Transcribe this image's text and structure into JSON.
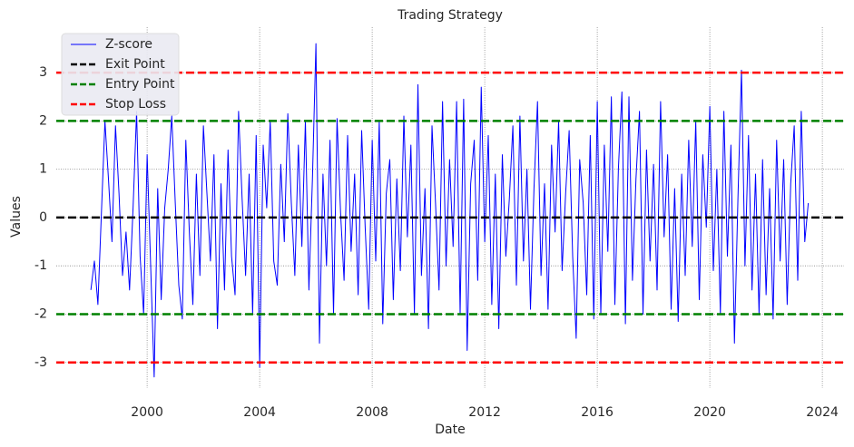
{
  "chart_data": {
    "type": "line",
    "title": "Trading Strategy",
    "x_label": "Date",
    "y_label": "Values",
    "x": [
      1998,
      1998.125,
      1998.25,
      1998.375,
      1998.5,
      1998.625,
      1998.75,
      1998.875,
      1999,
      1999.125,
      1999.25,
      1999.375,
      1999.5,
      1999.625,
      1999.75,
      1999.875,
      2000,
      2000.125,
      2000.25,
      2000.375,
      2000.5,
      2000.625,
      2000.75,
      2000.875,
      2001,
      2001.125,
      2001.25,
      2001.375,
      2001.5,
      2001.625,
      2001.75,
      2001.875,
      2002,
      2002.125,
      2002.25,
      2002.375,
      2002.5,
      2002.625,
      2002.75,
      2002.875,
      2003,
      2003.125,
      2003.25,
      2003.375,
      2003.5,
      2003.625,
      2003.75,
      2003.875,
      2004,
      2004.125,
      2004.25,
      2004.375,
      2004.5,
      2004.625,
      2004.75,
      2004.875,
      2005,
      2005.125,
      2005.25,
      2005.375,
      2005.5,
      2005.625,
      2005.75,
      2005.875,
      2006,
      2006.125,
      2006.25,
      2006.375,
      2006.5,
      2006.625,
      2006.75,
      2006.875,
      2007,
      2007.125,
      2007.25,
      2007.375,
      2007.5,
      2007.625,
      2007.75,
      2007.875,
      2008,
      2008.125,
      2008.25,
      2008.375,
      2008.5,
      2008.625,
      2008.75,
      2008.875,
      2009,
      2009.125,
      2009.25,
      2009.375,
      2009.5,
      2009.625,
      2009.75,
      2009.875,
      2010,
      2010.125,
      2010.25,
      2010.375,
      2010.5,
      2010.625,
      2010.75,
      2010.875,
      2011,
      2011.125,
      2011.25,
      2011.375,
      2011.5,
      2011.625,
      2011.75,
      2011.875,
      2012,
      2012.125,
      2012.25,
      2012.375,
      2012.5,
      2012.625,
      2012.75,
      2012.875,
      2013,
      2013.125,
      2013.25,
      2013.375,
      2013.5,
      2013.625,
      2013.75,
      2013.875,
      2014,
      2014.125,
      2014.25,
      2014.375,
      2014.5,
      2014.625,
      2014.75,
      2014.875,
      2015,
      2015.125,
      2015.25,
      2015.375,
      2015.5,
      2015.625,
      2015.75,
      2015.875,
      2016,
      2016.125,
      2016.25,
      2016.375,
      2016.5,
      2016.625,
      2016.75,
      2016.875,
      2017,
      2017.125,
      2017.25,
      2017.375,
      2017.5,
      2017.625,
      2017.75,
      2017.875,
      2018,
      2018.125,
      2018.25,
      2018.375,
      2018.5,
      2018.625,
      2018.75,
      2018.875,
      2019,
      2019.125,
      2019.25,
      2019.375,
      2019.5,
      2019.625,
      2019.75,
      2019.875,
      2020,
      2020.125,
      2020.25,
      2020.375,
      2020.5,
      2020.625,
      2020.75,
      2020.875,
      2021,
      2021.125,
      2021.25,
      2021.375,
      2021.5,
      2021.625,
      2021.75,
      2021.875,
      2022,
      2022.125,
      2022.25,
      2022.375,
      2022.5,
      2022.625,
      2022.75,
      2022.875,
      2023,
      2023.125,
      2023.25,
      2023.375,
      2023.5
    ],
    "series": [
      {
        "name": "Z-score",
        "color": "#0000ff",
        "values": [
          -1.5,
          -0.9,
          -1.8,
          0.1,
          2.0,
          0.8,
          -0.5,
          1.9,
          0.5,
          -1.2,
          -0.3,
          -1.5,
          0.2,
          2.2,
          -0.8,
          -2.0,
          1.3,
          -1.0,
          -3.3,
          0.6,
          -1.7,
          0.2,
          1.0,
          2.1,
          0.3,
          -1.4,
          -2.1,
          1.6,
          -0.3,
          -1.8,
          0.9,
          -1.2,
          1.9,
          0.5,
          -0.9,
          1.3,
          -2.3,
          0.7,
          -1.5,
          1.4,
          -0.8,
          -1.6,
          2.2,
          0.4,
          -1.2,
          0.9,
          -2.0,
          1.7,
          -3.1,
          1.5,
          0.2,
          2.0,
          -0.9,
          -1.4,
          1.1,
          -0.5,
          2.15,
          0.3,
          -1.2,
          1.5,
          -0.6,
          2.0,
          -1.5,
          0.8,
          3.6,
          -2.6,
          0.9,
          -1.0,
          1.6,
          -2.0,
          2.05,
          0.1,
          -1.3,
          1.7,
          -0.7,
          0.9,
          -1.6,
          1.8,
          -0.2,
          -1.9,
          1.6,
          -0.9,
          2.0,
          -2.2,
          0.5,
          1.2,
          -1.7,
          0.8,
          -1.1,
          2.1,
          -0.4,
          1.5,
          -2.0,
          2.75,
          -1.2,
          0.6,
          -2.3,
          1.9,
          0.3,
          -1.5,
          2.4,
          -1.0,
          1.2,
          -0.6,
          2.4,
          -2.0,
          2.45,
          -2.75,
          0.7,
          1.6,
          -1.3,
          2.7,
          -0.5,
          1.7,
          -1.8,
          0.9,
          -2.3,
          1.3,
          -0.8,
          0.4,
          1.9,
          -1.4,
          2.1,
          -0.9,
          1.0,
          -1.9,
          0.6,
          2.4,
          -1.2,
          0.7,
          -1.9,
          1.5,
          -0.3,
          2.0,
          -1.1,
          0.5,
          1.8,
          -0.8,
          -2.5,
          1.2,
          0.3,
          -1.6,
          1.7,
          -2.1,
          2.4,
          -2.0,
          1.5,
          -0.7,
          2.5,
          -1.8,
          1.0,
          2.6,
          -2.2,
          2.5,
          -1.3,
          0.8,
          2.2,
          -2.0,
          1.4,
          -0.9,
          1.1,
          -1.5,
          2.4,
          -0.4,
          1.3,
          -1.9,
          0.6,
          -2.15,
          0.9,
          -1.2,
          1.6,
          -0.6,
          2.0,
          -1.7,
          1.3,
          -0.2,
          2.3,
          -1.1,
          1.0,
          -2.0,
          2.2,
          -0.8,
          1.5,
          -2.6,
          0.4,
          3.05,
          -1.0,
          1.7,
          -1.5,
          0.9,
          -2.0,
          1.2,
          -1.6,
          0.6,
          -2.1,
          1.6,
          -0.9,
          1.2,
          -1.8,
          0.7,
          1.9,
          -1.3,
          2.2,
          -0.5,
          0.3
        ]
      }
    ],
    "hlines": [
      {
        "name": "Exit Point",
        "color": "#000000",
        "values": [
          0
        ]
      },
      {
        "name": "Entry Point",
        "color": "#008000",
        "values": [
          2,
          -2
        ]
      },
      {
        "name": "Stop Loss",
        "color": "#ff0000",
        "values": [
          3,
          -3
        ]
      }
    ],
    "xlim": [
      1996.77,
      2024.77
    ],
    "xticks": [
      2000,
      2004,
      2008,
      2012,
      2016,
      2020,
      2024
    ],
    "ylim": [
      -3.53,
      3.94
    ],
    "yticks": [
      -3,
      -2,
      -1,
      0,
      1,
      2,
      3
    ],
    "grid": true,
    "legend": "upper-left"
  }
}
